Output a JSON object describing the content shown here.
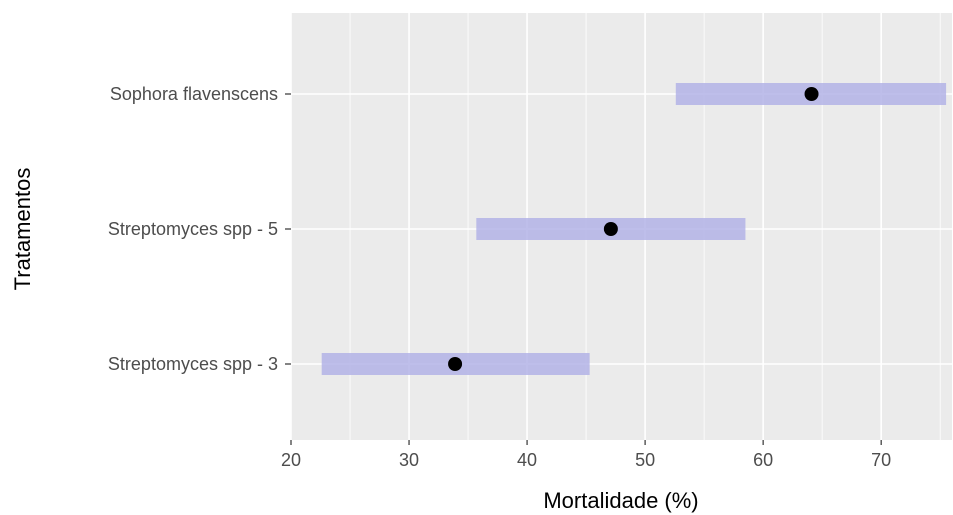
{
  "chart_data": {
    "type": "interval",
    "title": "",
    "xlabel": "Mortalidade (%)",
    "ylabel": "Tratamentos",
    "xlim": [
      20,
      76
    ],
    "x_ticks": [
      20,
      30,
      40,
      50,
      60,
      70
    ],
    "x_tick_labels": [
      "20",
      "30",
      "40",
      "50",
      "60",
      "70"
    ],
    "grid": true,
    "categories": [
      "Sophora flavenscens",
      "Streptomyces spp - 5",
      "Streptomyces spp - 3"
    ],
    "estimates": [
      64.1,
      47.1,
      33.9
    ],
    "lower": [
      52.6,
      35.7,
      22.6
    ],
    "upper": [
      75.5,
      58.5,
      45.3
    ],
    "colors": {
      "panel": "#ebebeb",
      "grid": "#ffffff",
      "interval": "#b3b3e6",
      "point": "#000000"
    }
  }
}
